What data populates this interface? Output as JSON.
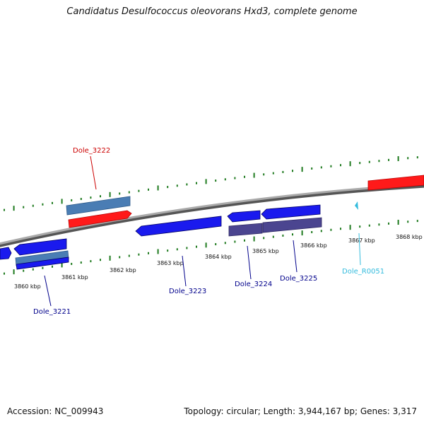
{
  "title": "Candidatus Desulfococcus oleovorans Hxd3, complete genome",
  "footer": {
    "accession": "Accession: NC_009943",
    "summary": "Topology: circular; Length: 3,944,167 bp; Genes: 3,317"
  },
  "colors": {
    "backbone": "#808080",
    "tick": "#1e7a1e",
    "forward_gene": "#ff1a1a",
    "forward_gene_label": "#cc0000",
    "reverse_gene": "#1a1aee",
    "reverse_gene_label": "#00008b",
    "steelblue_gene": "#4a7db4",
    "purple_gene": "#4b4590",
    "rna_label": "#33bbdd"
  },
  "ticks": [
    {
      "label": "3860 kbp"
    },
    {
      "label": "3861 kbp"
    },
    {
      "label": "3862 kbp"
    },
    {
      "label": "3863 kbp"
    },
    {
      "label": "3864 kbp"
    },
    {
      "label": "3865 kbp"
    },
    {
      "label": "3866 kbp"
    },
    {
      "label": "3867 kbp"
    },
    {
      "label": "3868 kbp"
    }
  ],
  "genes": [
    {
      "label": "Dole_3221"
    },
    {
      "label": "Dole_3222"
    },
    {
      "label": "Dole_3223"
    },
    {
      "label": "Dole_3224"
    },
    {
      "label": "Dole_3225"
    },
    {
      "label": "Dole_R0051"
    }
  ]
}
